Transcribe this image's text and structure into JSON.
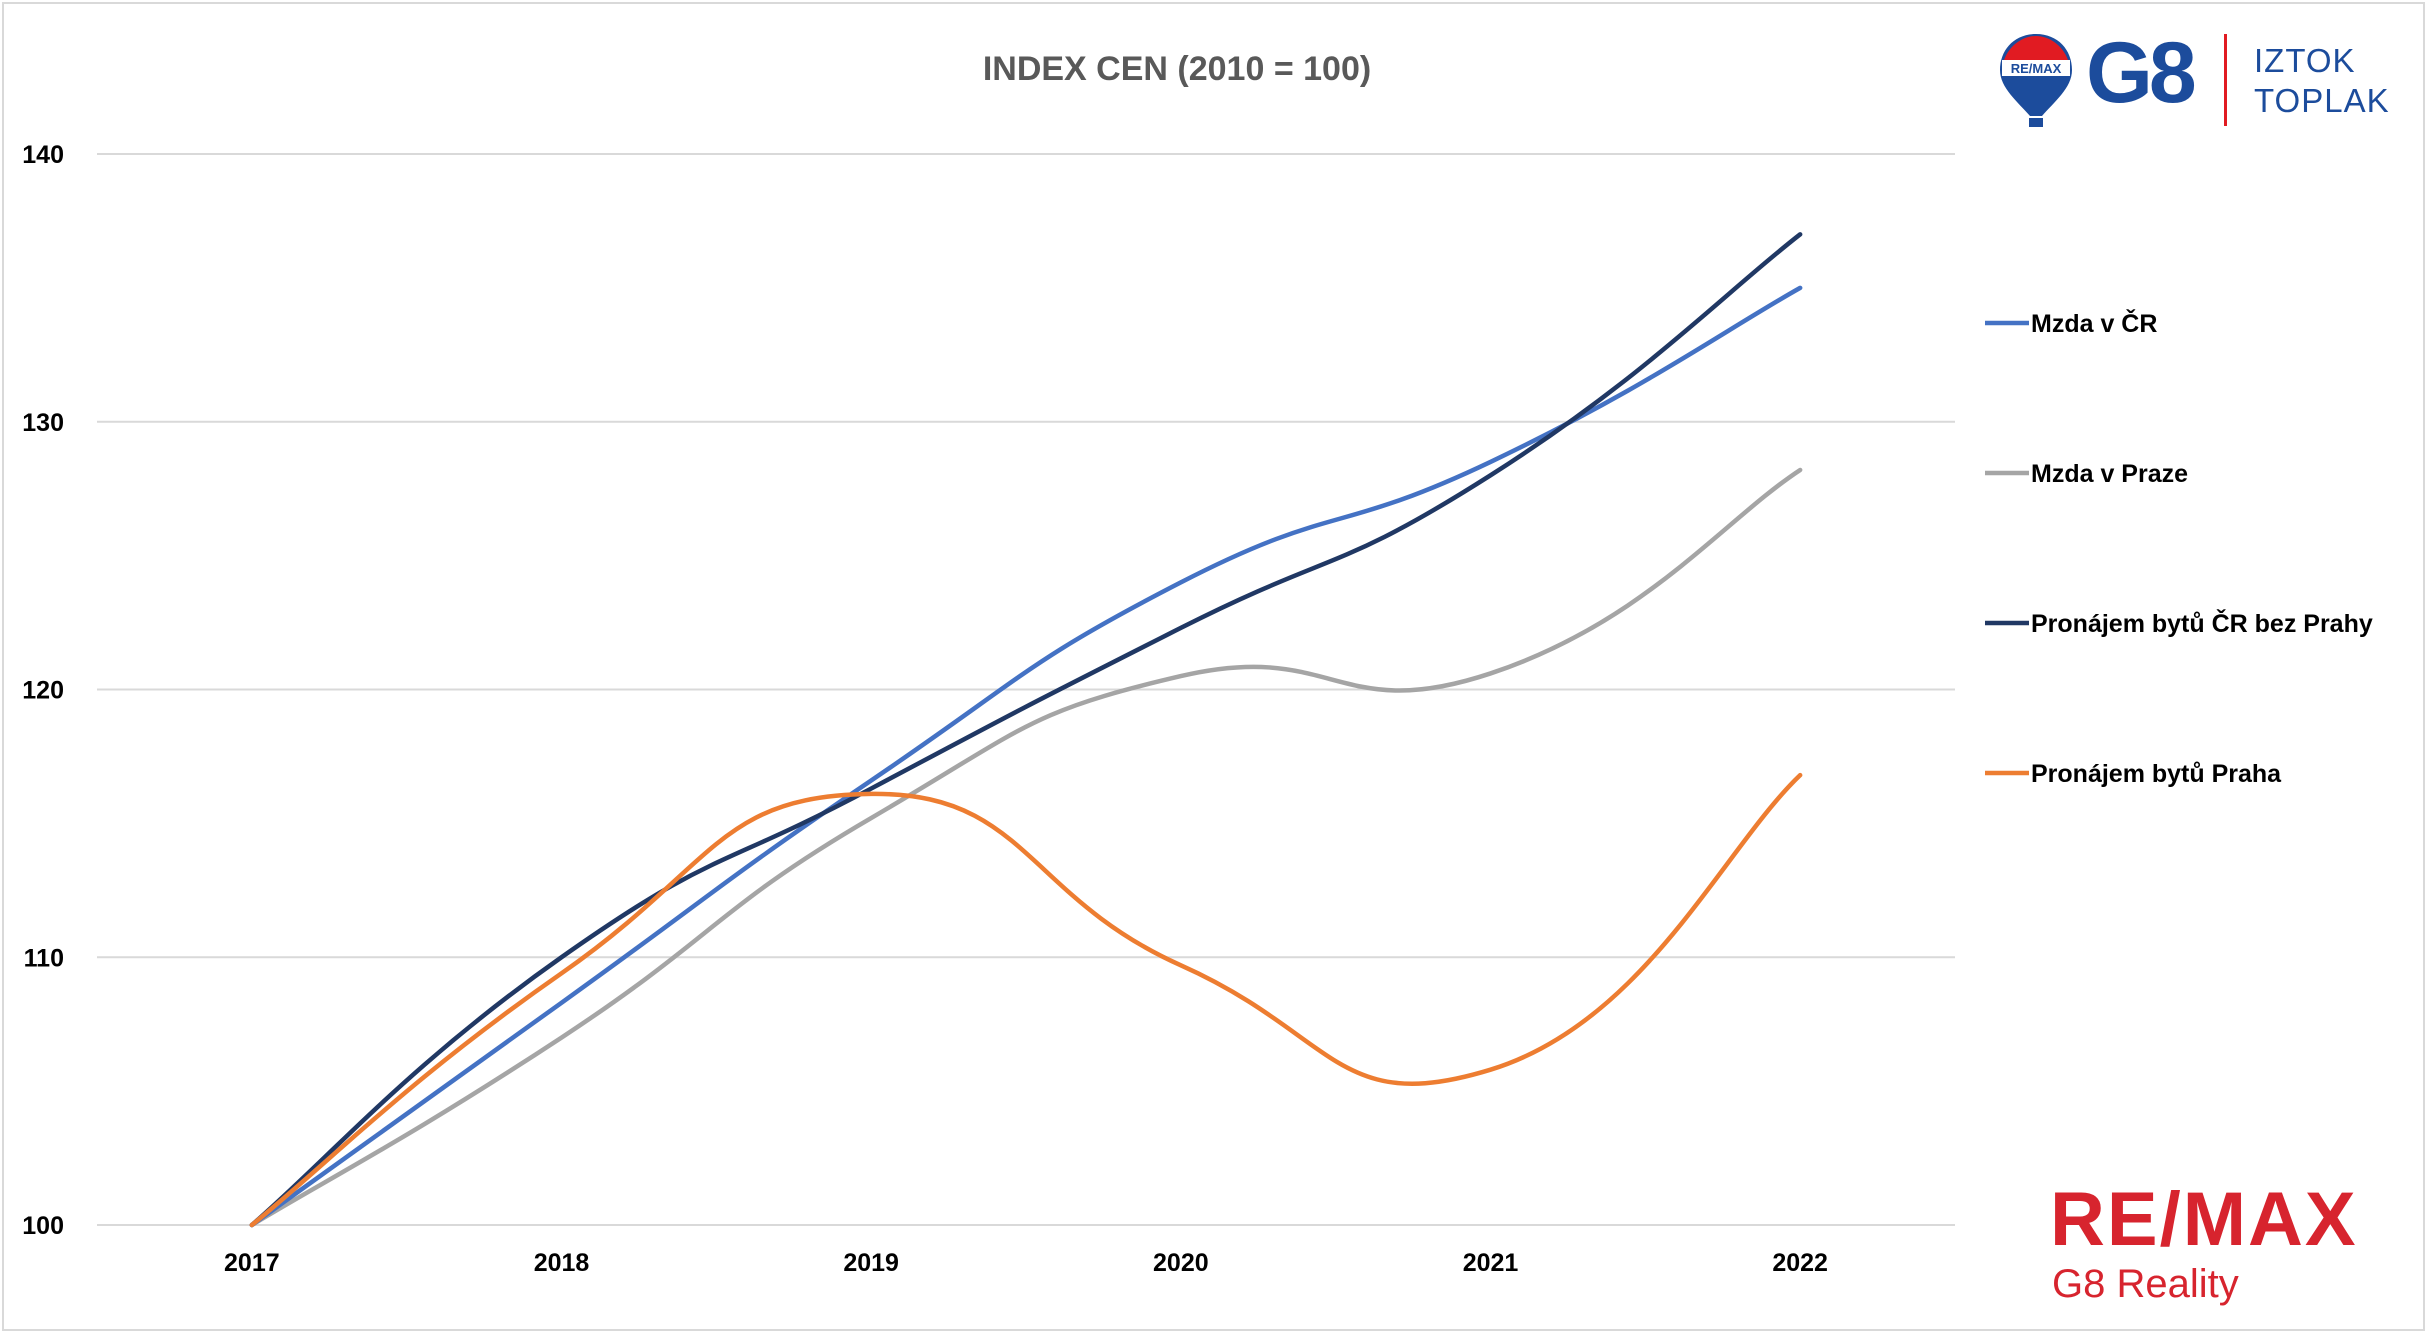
{
  "chart_data": {
    "type": "line",
    "title": "INDEX CEN (2010 = 100)",
    "xlabel": "",
    "ylabel": "",
    "categories": [
      "2017",
      "2018",
      "2019",
      "2020",
      "2021",
      "2022"
    ],
    "ylim": [
      100,
      140
    ],
    "yticks": [
      "100",
      "110",
      "120",
      "130",
      "140"
    ],
    "grid": true,
    "legend_position": "right",
    "series": [
      {
        "name": "Mzda v ČR",
        "color": "#4472c4",
        "values": [
          100,
          108.3,
          116.6,
          124.0,
          128.5,
          135.0
        ]
      },
      {
        "name": "Mzda v Praze",
        "color": "#a5a5a5",
        "values": [
          100,
          107.0,
          115.2,
          120.5,
          120.6,
          128.2
        ]
      },
      {
        "name": "Pronájem bytů ČR bez Prahy",
        "color": "#203864",
        "values": [
          100,
          110.0,
          116.3,
          122.3,
          128.0,
          137.0
        ]
      },
      {
        "name": "Pronájem bytů Praha",
        "color": "#ed7d31",
        "values": [
          100,
          109.4,
          116.1,
          109.7,
          105.8,
          116.8
        ]
      }
    ]
  },
  "branding": {
    "top_logo": {
      "brand": "G8",
      "name_line1": "IZTOK",
      "name_line2": "TOPLAK",
      "balloon_text": "RE/MAX",
      "icon": "remax-balloon-icon"
    },
    "bottom_logo": {
      "wordmark": "RE/MAX",
      "subtitle": "G8 Reality"
    },
    "colors": {
      "remax_red": "#d7242e",
      "remax_blue": "#1c4c9c"
    }
  }
}
